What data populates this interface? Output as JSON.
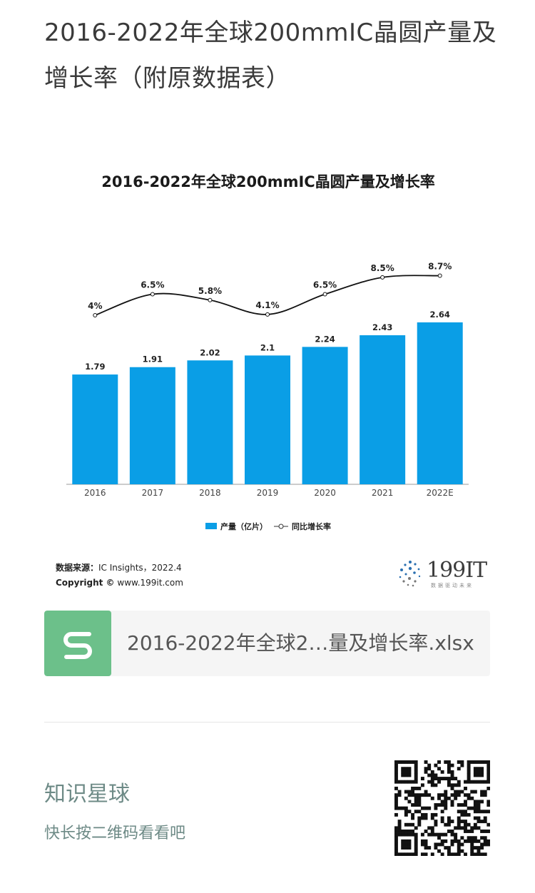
{
  "article": {
    "title": "2016-2022年全球200mmIC晶圆产量及增长率（附原数据表）"
  },
  "chart_data": {
    "type": "bar",
    "title": "2016-2022年全球200mmIC晶圆产量及增长率",
    "categories": [
      "2016",
      "2017",
      "2018",
      "2019",
      "2020",
      "2021",
      "2022E"
    ],
    "series": [
      {
        "name": "产量（亿片）",
        "kind": "bar",
        "values": [
          1.79,
          1.91,
          2.02,
          2.1,
          2.24,
          2.43,
          2.64
        ],
        "labels": [
          "1.79",
          "1.91",
          "2.02",
          "2.1",
          "2.24",
          "2.43",
          "2.64"
        ]
      },
      {
        "name": "同比增长率",
        "kind": "line",
        "values": [
          4,
          6.5,
          5.8,
          4.1,
          6.5,
          8.5,
          8.7
        ],
        "labels": [
          "4%",
          "6.5%",
          "5.8%",
          "4.1%",
          "6.5%",
          "8.5%",
          "8.7%"
        ]
      }
    ],
    "legend": "bottom",
    "colors": {
      "bar": "#0a9ee6",
      "line": "#111111"
    }
  },
  "source": {
    "label": "数据来源：",
    "text": "IC Insights，2022.4",
    "copyright_label": "Copyright ©",
    "copyright_text": "www.199it.com"
  },
  "logo": {
    "text": "199IT",
    "sub": "数据驱动未来"
  },
  "attachment": {
    "icon": "spreadsheet-icon",
    "filename": "2016-2022年全球2…量及增长率.xlsx"
  },
  "footer": {
    "title": "知识星球",
    "subtitle": "快长按二维码看看吧"
  }
}
